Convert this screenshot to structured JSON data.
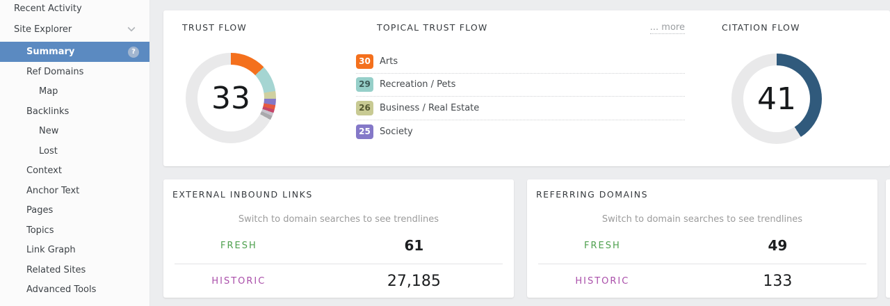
{
  "sidebar": {
    "items": [
      {
        "label": "Recent Activity"
      },
      {
        "label": "Site Explorer"
      },
      {
        "label": "Summary"
      },
      {
        "label": "Ref Domains"
      },
      {
        "label": "Map"
      },
      {
        "label": "Backlinks"
      },
      {
        "label": "New"
      },
      {
        "label": "Lost"
      },
      {
        "label": "Context"
      },
      {
        "label": "Anchor Text"
      },
      {
        "label": "Pages"
      },
      {
        "label": "Topics"
      },
      {
        "label": "Link Graph"
      },
      {
        "label": "Related Sites"
      },
      {
        "label": "Advanced Tools"
      }
    ],
    "selected_item": "Summary",
    "selected_color": "#5b8ac1"
  },
  "icons": {
    "help_glyph": "?"
  },
  "flow_card": {
    "trust": {
      "title": "TRUST FLOW",
      "value": "33"
    },
    "topical": {
      "title": "TOPICAL TRUST FLOW",
      "more_label": "... more",
      "rows": [
        {
          "score": "30",
          "label": "Arts",
          "color": "#f4701d",
          "text_color": "#ffffff"
        },
        {
          "score": "29",
          "label": "Recreation / Pets",
          "color": "#96cfc9",
          "text_color": "#3c5a57"
        },
        {
          "score": "26",
          "label": "Business / Real Estate",
          "color": "#c8ca93",
          "text_color": "#545830"
        },
        {
          "score": "25",
          "label": "Society",
          "color": "#8478c8",
          "text_color": "#ffffff"
        }
      ]
    },
    "citation": {
      "title": "CITATION FLOW",
      "value": "41"
    }
  },
  "stat_cards": [
    {
      "title": "EXTERNAL INBOUND LINKS",
      "note": "Switch to domain searches to see trendlines",
      "fresh_label": "FRESH",
      "fresh_value": "61",
      "historic_label": "HISTORIC",
      "historic_value": "27,185"
    },
    {
      "title": "REFERRING DOMAINS",
      "note": "Switch to domain searches to see trendlines",
      "fresh_label": "FRESH",
      "fresh_value": "49",
      "historic_label": "HISTORIC",
      "historic_value": "133"
    }
  ],
  "status_colors": {
    "fresh": "#4ea04e",
    "historic": "#aa4faa"
  },
  "chart_data": [
    {
      "type": "donut",
      "title": "TRUST FLOW",
      "value": 33,
      "max": 100,
      "track": "#e9e9ea",
      "segments": [
        {
          "name": "Arts",
          "color": "#f4701d",
          "pct": 13.0
        },
        {
          "name": "Recreation / Pets",
          "color": "#a5d5d2",
          "pct": 9.5
        },
        {
          "name": "Business / Real Estate",
          "color": "#cfd0a0",
          "pct": 2.8
        },
        {
          "name": "Society",
          "color": "#8478c8",
          "pct": 2.2
        },
        {
          "name": "other-1",
          "color": "#e55a41",
          "pct": 1.6
        },
        {
          "name": "other-2",
          "color": "#c64568",
          "pct": 1.2
        },
        {
          "name": "other-3",
          "color": "#c7c2cc",
          "pct": 1.2
        },
        {
          "name": "other-4",
          "color": "#a9a9ac",
          "pct": 1.5
        }
      ]
    },
    {
      "type": "donut",
      "title": "CITATION FLOW",
      "value": 41,
      "max": 100,
      "track": "#e9e9ea",
      "segments": [
        {
          "name": "Citation Flow",
          "color": "#305a7c",
          "pct": 41
        }
      ]
    }
  ]
}
